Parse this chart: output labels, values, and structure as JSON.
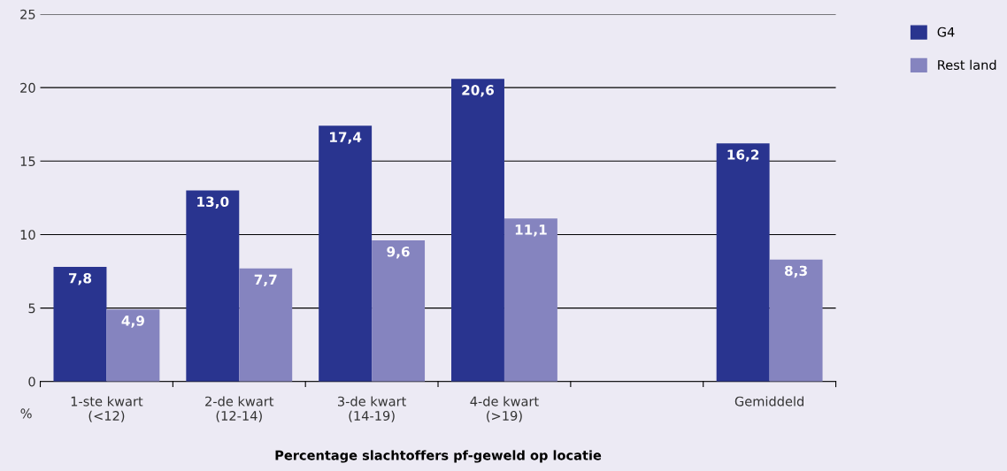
{
  "chart_data": {
    "type": "bar",
    "xlabel": "Percentage slachtoffers pf-geweld op locatie",
    "ylabel": "%",
    "categories": [
      "1-ste kwart\n(<12)",
      "2-de kwart\n(12-14)",
      "3-de kwart\n(14-19)",
      "4-de kwart\n(>19)",
      null,
      "Gemiddeld"
    ],
    "series": [
      {
        "name": "G4",
        "color": "#29348f",
        "values": [
          7.8,
          13.0,
          17.4,
          20.6,
          null,
          16.2
        ],
        "value_labels": [
          "7,8",
          "13,0",
          "17,4",
          "20,6",
          null,
          "16,2"
        ]
      },
      {
        "name": "Rest land",
        "color": "#8584bf",
        "values": [
          4.9,
          7.7,
          9.6,
          11.1,
          null,
          8.3
        ],
        "value_labels": [
          "4,9",
          "7,7",
          "9,6",
          "11,1",
          null,
          "8,3"
        ]
      }
    ],
    "ylim": [
      0,
      25
    ],
    "yticks": [
      0,
      5,
      10,
      15,
      20,
      25
    ],
    "grid": "y",
    "legend": "top right"
  }
}
